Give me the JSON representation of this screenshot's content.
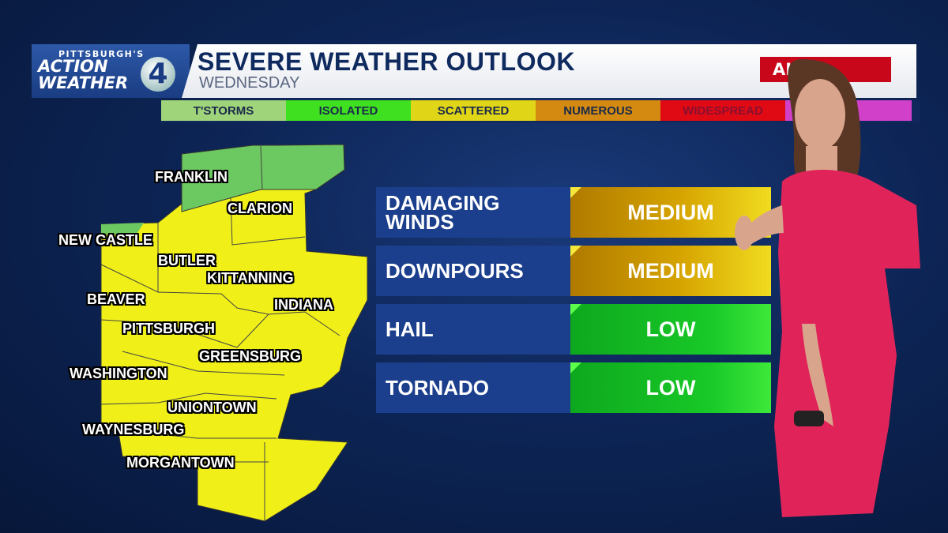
{
  "branding": {
    "logo_small": "PITTSBURGH'S",
    "logo_line1": "ACTION",
    "logo_line2": "WEATHER",
    "logo_number": "4"
  },
  "header": {
    "title": "SEVERE WEATHER OUTLOOK",
    "subtitle": "WEDNESDAY",
    "alert_label_visible": "ALE",
    "alert_color": "#c8081a"
  },
  "legend": [
    {
      "label": "T'STORMS",
      "color": "#9fd47a"
    },
    {
      "label": "ISOLATED",
      "color": "#3fe020"
    },
    {
      "label": "SCATTERED",
      "color": "#e0d516"
    },
    {
      "label": "NUMEROUS",
      "color": "#d48a10"
    },
    {
      "label": "WIDESPREAD",
      "color": "#e00a14"
    },
    {
      "label": "",
      "color": "#d040c8"
    }
  ],
  "map": {
    "fill_colors": {
      "scattered": "#f0f018",
      "isolated": "#6cc860"
    },
    "cities": [
      "FRANKLIN",
      "CLARION",
      "NEW CASTLE",
      "BUTLER",
      "KITTANNING",
      "BEAVER",
      "INDIANA",
      "PITTSBURGH",
      "GREENSBURG",
      "WASHINGTON",
      "UNIONTOWN",
      "WAYNESBURG",
      "MORGANTOWN"
    ]
  },
  "hazards": [
    {
      "name": "DAMAGING WINDS",
      "level": "MEDIUM"
    },
    {
      "name": "DOWNPOURS",
      "level": "MEDIUM"
    },
    {
      "name": "HAIL",
      "level": "LOW"
    },
    {
      "name": "TORNADO",
      "level": "LOW"
    }
  ]
}
